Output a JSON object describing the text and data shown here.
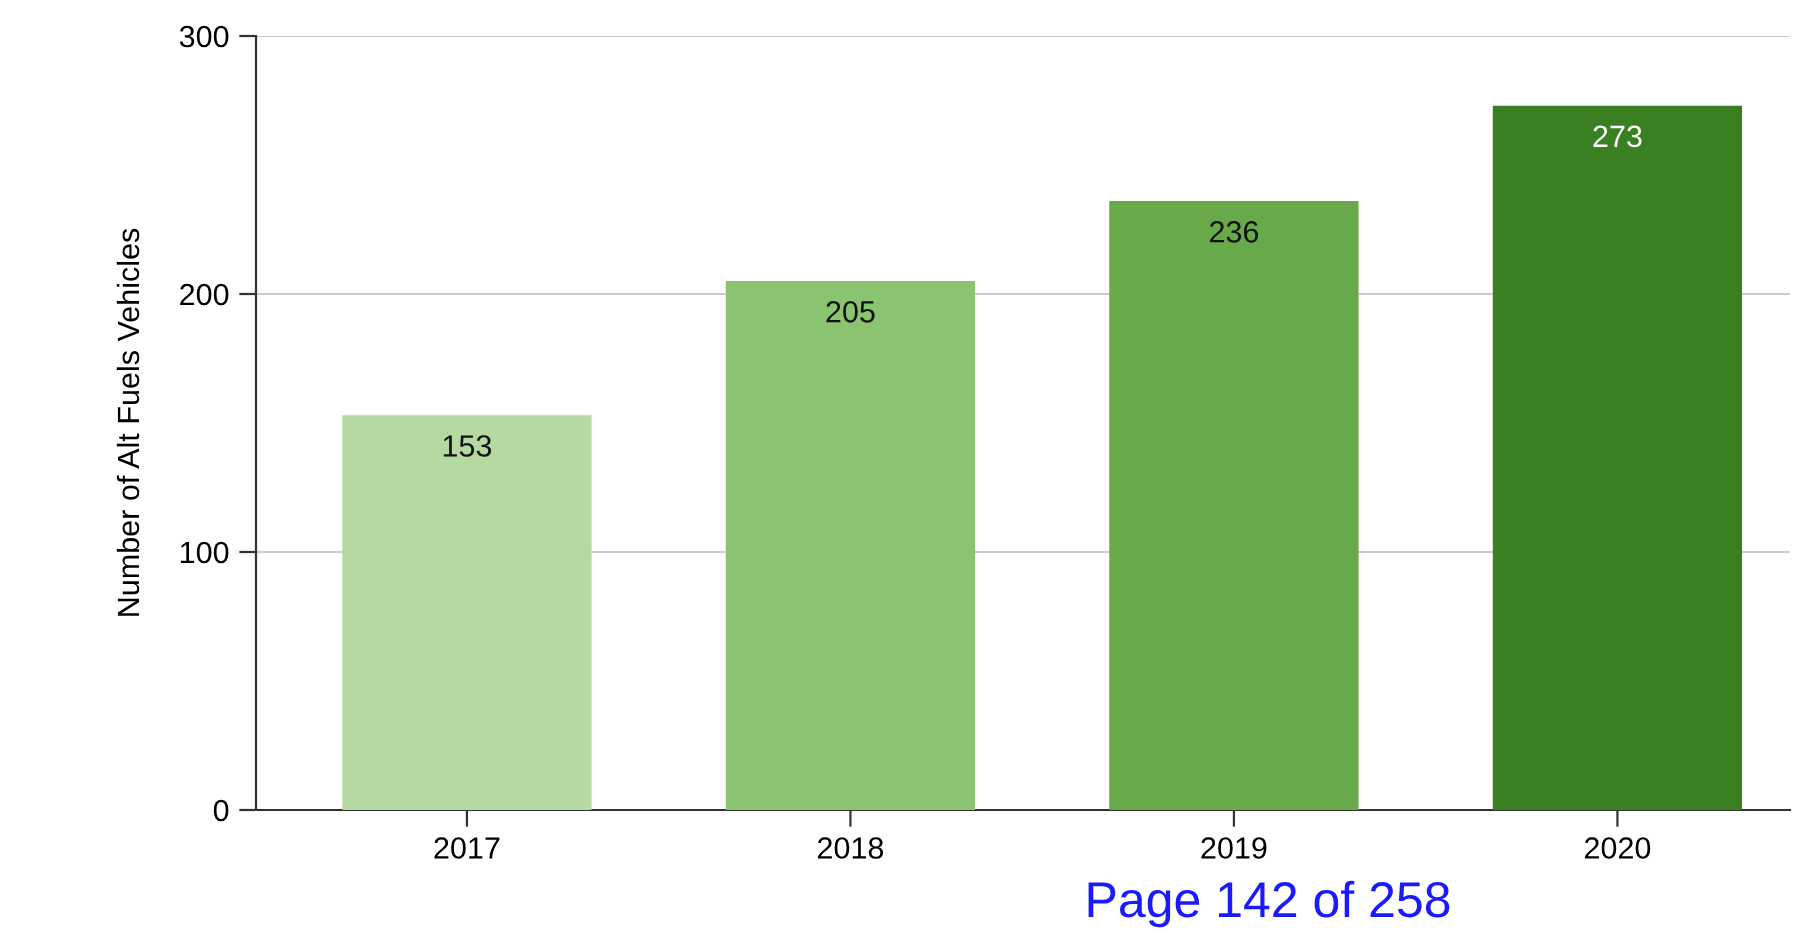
{
  "chart_data": {
    "type": "bar",
    "categories": [
      "2017",
      "2018",
      "2019",
      "2020"
    ],
    "values": [
      153,
      205,
      236,
      273
    ],
    "colors": [
      "#b5d9a0",
      "#8bc470",
      "#68a94a",
      "#3b7f23"
    ],
    "ylabel": "Number of Alt Fuels Vehicles",
    "ylim": [
      0,
      300
    ],
    "yticks": [
      0,
      100,
      200,
      300
    ],
    "grid": "y",
    "data_labels": true,
    "legend": false,
    "annotations": [
      "Page 142 of 258"
    ]
  }
}
